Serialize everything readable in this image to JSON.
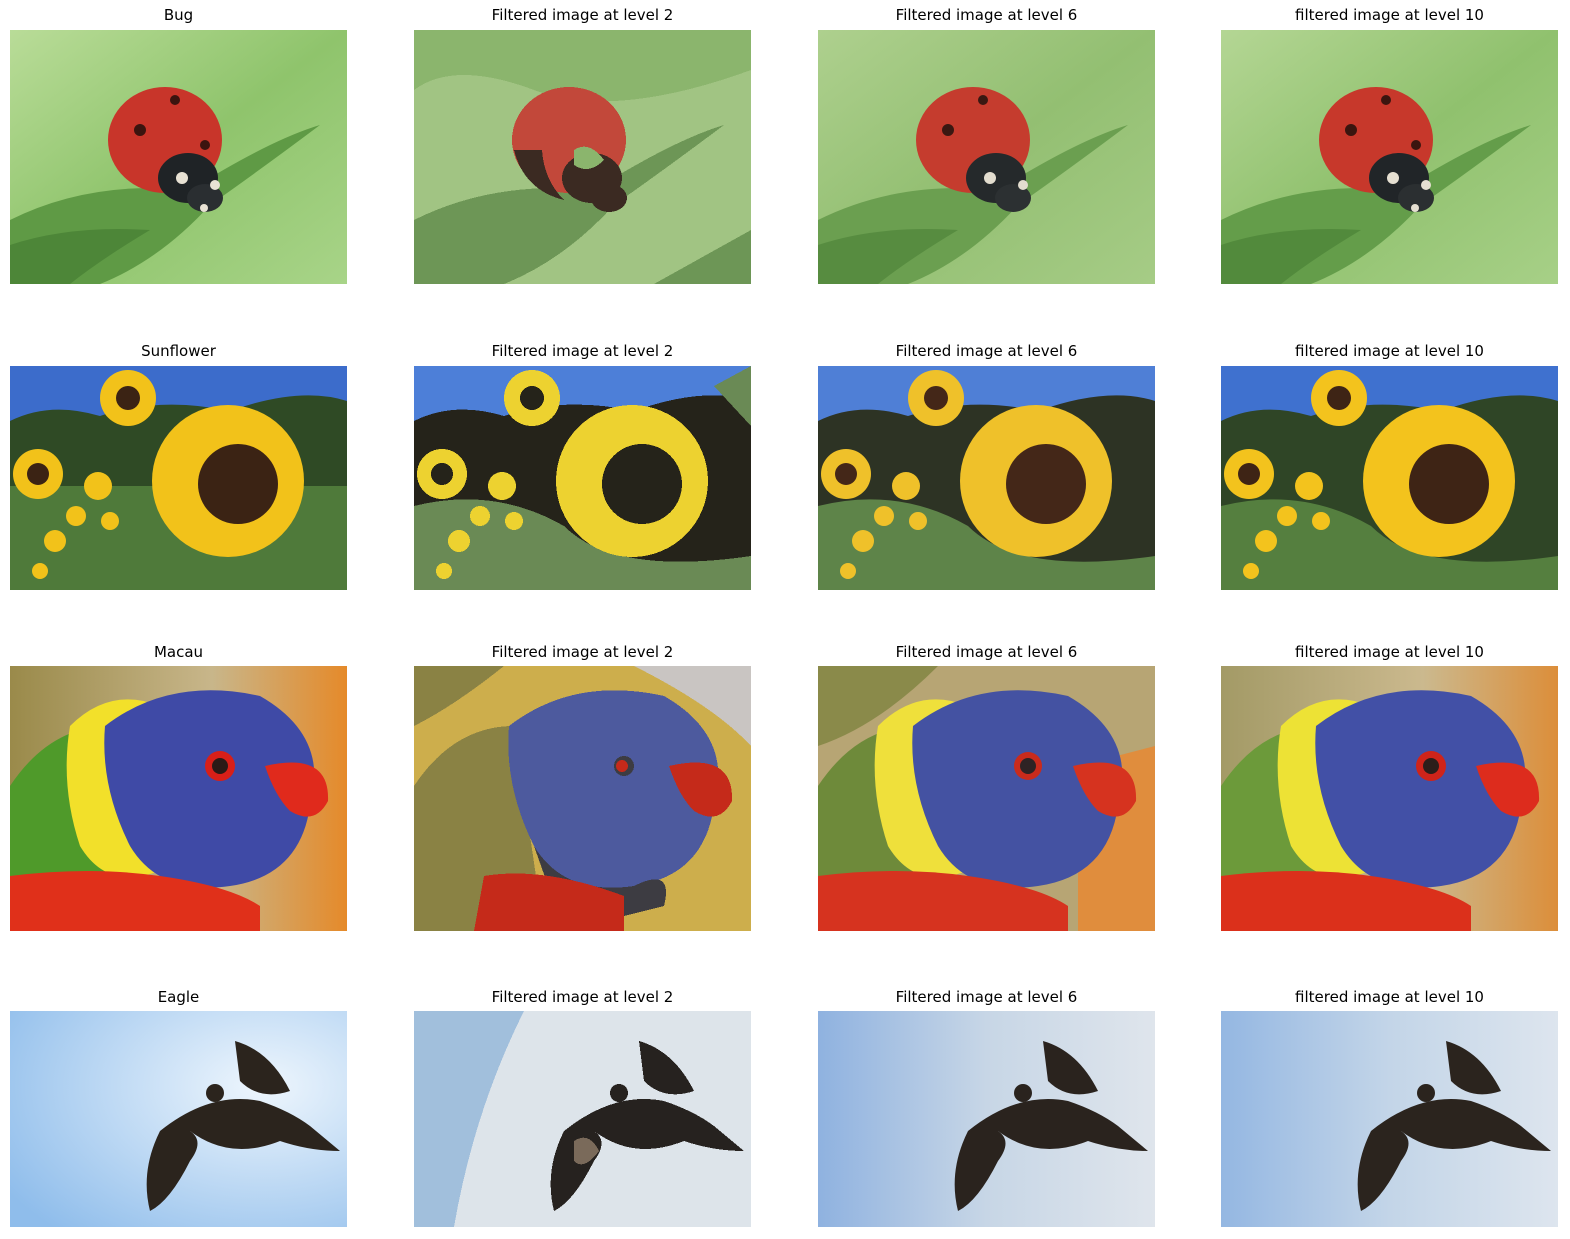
{
  "rows": [
    {
      "subject": "bug",
      "titles": [
        "Bug",
        "Filtered image at level 2",
        "Filtered image at level 6",
        "filtered image at level 10"
      ]
    },
    {
      "subject": "sunflower",
      "titles": [
        "Sunflower",
        "Filtered image at level 2",
        "Filtered image at level 6",
        "filtered image at level 10"
      ]
    },
    {
      "subject": "parrot",
      "titles": [
        "Macau",
        "Filtered image at level 2",
        "Filtered image at level 6",
        "filtered image at level 10"
      ]
    },
    {
      "subject": "bird",
      "titles": [
        "Eagle",
        "Filtered image at level 2",
        "Filtered image at level 6",
        "filtered image at level 10"
      ]
    }
  ],
  "colors": {
    "background": "#ffffff",
    "leaf_green": "#8fbf6a",
    "ladybug_red": "#c8352a",
    "sky_blue": "#4f7fd6",
    "sunflower_yellow": "#f2c21a",
    "parrot_blue": "#3f4aa6",
    "beak_red": "#e02a1c",
    "eagle_sky": "#a9c8ea",
    "eagle_dark": "#2b241d"
  }
}
